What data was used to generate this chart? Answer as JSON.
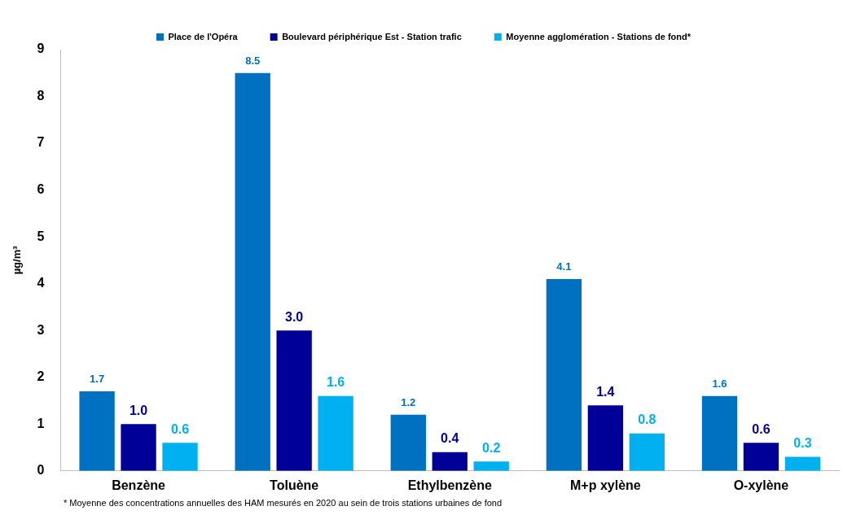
{
  "chart_data": {
    "type": "bar",
    "ylabel": "µg/m³",
    "categories": [
      "Benzène",
      "Toluène",
      "Ethylbenzène",
      "M+p xylène",
      "O-xylène"
    ],
    "series": [
      {
        "name": "Place de l'Opéra",
        "color": "#0070c0",
        "values": [
          1.7,
          8.5,
          1.2,
          4.1,
          1.6
        ],
        "value_labels": [
          "1.7",
          "8.5",
          "1.2",
          "4.1",
          "1.6"
        ]
      },
      {
        "name": "Boulevard périphérique Est - Station trafic",
        "color": "#000099",
        "values": [
          1.0,
          3.0,
          0.4,
          1.4,
          0.6
        ],
        "value_labels": [
          "1.0",
          "3.0",
          "0.4",
          "1.4",
          "0.6"
        ]
      },
      {
        "name": "Moyenne agglomération - Stations de fond*",
        "color": "#00b0f0",
        "values": [
          0.6,
          1.6,
          0.2,
          0.8,
          0.3
        ],
        "value_labels": [
          "0.6",
          "1.6",
          "0.2",
          "0.8",
          "0.3"
        ]
      }
    ],
    "ylim": [
      0,
      9
    ],
    "yticks": [
      0,
      1,
      2,
      3,
      4,
      5,
      6,
      7,
      8,
      9
    ],
    "grid": false,
    "legend": "top",
    "annotations": [
      "* Moyenne des concentrations annuelles des HAM mesurés en 2020 au sein de trois stations urbaines de fond"
    ]
  }
}
